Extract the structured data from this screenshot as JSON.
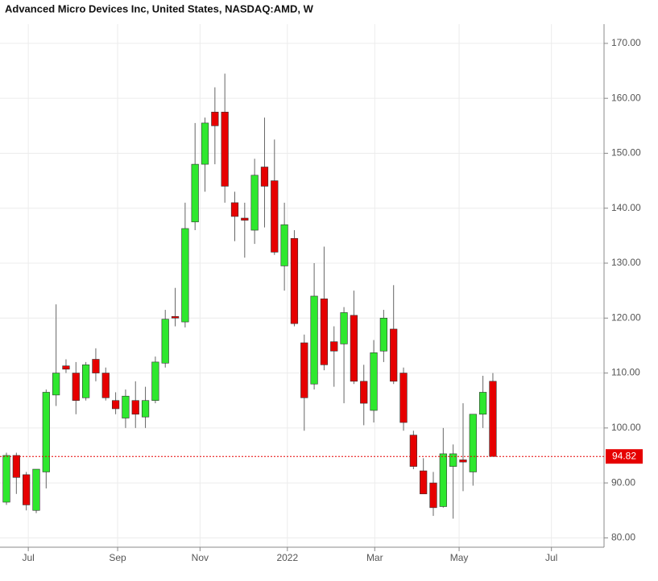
{
  "chart_data": {
    "type": "candlestick",
    "title": "Advanced Micro Devices Inc, United States, NASDAQ:AMD, W",
    "up_color": "#2ee82e",
    "down_color": "#e60000",
    "open": [
      86.5,
      95,
      91.5,
      85,
      92,
      106,
      111.3,
      110,
      105.5,
      112.5,
      110,
      105,
      101.8,
      105,
      102,
      105,
      111.8,
      120.3,
      119.3,
      137.5,
      148,
      157.5,
      157.5,
      141,
      138.2,
      136,
      147.5,
      145,
      129.5,
      134.5,
      115.5,
      108,
      123.5,
      115.7,
      115.3,
      120.5,
      108.5,
      103.2,
      114,
      118,
      110,
      98.7,
      92.2,
      90,
      85.7,
      93,
      94.2,
      92,
      102.5,
      108.5
    ],
    "high": [
      95.5,
      95.5,
      92,
      92.5,
      107,
      122.5,
      112.5,
      112,
      112,
      114.5,
      111,
      106.5,
      107,
      108.5,
      107.5,
      113,
      121.5,
      125.5,
      141,
      155.5,
      156.5,
      162,
      164.5,
      143,
      141,
      149,
      156.5,
      152.5,
      141,
      136,
      117,
      130,
      133,
      118.5,
      122,
      125,
      111.5,
      116,
      121.5,
      126,
      111,
      99.5,
      94.5,
      92,
      100,
      97,
      104.5,
      102.5,
      109.5,
      110
    ],
    "low": [
      86,
      88,
      85,
      84.5,
      89,
      104,
      110,
      102.5,
      105,
      108.5,
      105,
      102.5,
      100,
      100,
      100,
      104.5,
      111,
      118.5,
      118.3,
      136,
      143,
      148,
      141,
      134,
      131,
      133.5,
      136.5,
      131.5,
      125,
      118.5,
      99.5,
      107,
      110.5,
      107.5,
      104.5,
      108,
      100.5,
      101,
      112,
      108,
      99.5,
      92.5,
      88,
      84,
      85.5,
      83.5,
      88.5,
      89.5,
      100,
      94.82
    ],
    "close": [
      95,
      91,
      86,
      92.5,
      106.5,
      110,
      110.7,
      105,
      111.5,
      110,
      105.5,
      103.5,
      105.8,
      102.5,
      105,
      112,
      119.8,
      120,
      136.3,
      148,
      155.5,
      155,
      144,
      138.5,
      137.8,
      146,
      144,
      132,
      137,
      119,
      105.5,
      124,
      111.5,
      114,
      121,
      108.5,
      104.5,
      113.7,
      120,
      108.5,
      101,
      93,
      88,
      85.5,
      95.3,
      95.3,
      93.8,
      102.5,
      106.5,
      94.82
    ],
    "last_price": 94.82,
    "xlim": [
      -0.65,
      60.2
    ],
    "xticks": [
      {
        "value": 2.2,
        "label": "Jul"
      },
      {
        "value": 11.2,
        "label": "Sep"
      },
      {
        "value": 19.5,
        "label": "Nov"
      },
      {
        "value": 28.3,
        "label": "2022"
      },
      {
        "value": 37.1,
        "label": "Mar"
      },
      {
        "value": 45.6,
        "label": "May"
      },
      {
        "value": 54.9,
        "label": "Jul"
      }
    ],
    "ylim": [
      78.3,
      173.5
    ],
    "yticks": [
      {
        "value": 80,
        "label": "80.00"
      },
      {
        "value": 90,
        "label": "90.00"
      },
      {
        "value": 100,
        "label": "100.00"
      },
      {
        "value": 110,
        "label": "110.00"
      },
      {
        "value": 120,
        "label": "120.00"
      },
      {
        "value": 130,
        "label": "130.00"
      },
      {
        "value": 140,
        "label": "140.00"
      },
      {
        "value": 150,
        "label": "150.00"
      },
      {
        "value": 160,
        "label": "160.00"
      },
      {
        "value": 170,
        "label": "170.00"
      }
    ],
    "grid": true
  }
}
